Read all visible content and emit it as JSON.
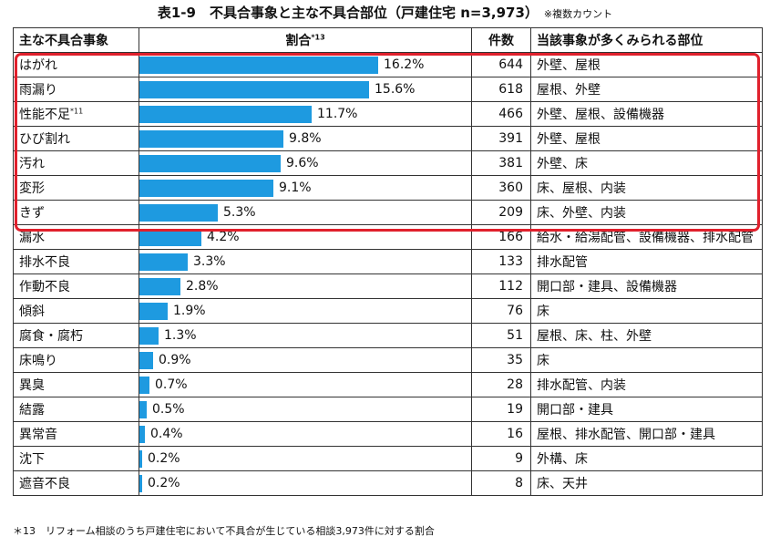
{
  "title": "表1-9　不具合事象と主な不具合部位（戸建住宅 n=3,973）",
  "title_note": "※複数カウント",
  "headers": {
    "event": "主な不具合事象",
    "ratio": "割合",
    "ratio_sup": "*13",
    "count": "件数",
    "parts": "当該事象が多くみられる部位"
  },
  "colors": {
    "bar": "#1e9ae0",
    "highlight": "#e0202c"
  },
  "highlight_rows": 7,
  "chart_data": {
    "type": "bar",
    "orientation": "horizontal",
    "ylim": [
      0,
      16.2
    ],
    "rows": [
      {
        "event": "はがれ",
        "sup": "",
        "ratio": 16.2,
        "ratio_label": "16.2%",
        "count": "644",
        "parts": "外壁、屋根"
      },
      {
        "event": "雨漏り",
        "sup": "",
        "ratio": 15.6,
        "ratio_label": "15.6%",
        "count": "618",
        "parts": "屋根、外壁"
      },
      {
        "event": "性能不足",
        "sup": "*11",
        "ratio": 11.7,
        "ratio_label": "11.7%",
        "count": "466",
        "parts": "外壁、屋根、設備機器"
      },
      {
        "event": "ひび割れ",
        "sup": "",
        "ratio": 9.8,
        "ratio_label": "9.8%",
        "count": "391",
        "parts": "外壁、屋根"
      },
      {
        "event": "汚れ",
        "sup": "",
        "ratio": 9.6,
        "ratio_label": "9.6%",
        "count": "381",
        "parts": "外壁、床"
      },
      {
        "event": "変形",
        "sup": "",
        "ratio": 9.1,
        "ratio_label": "9.1%",
        "count": "360",
        "parts": "床、屋根、内装"
      },
      {
        "event": "きず",
        "sup": "",
        "ratio": 5.3,
        "ratio_label": "5.3%",
        "count": "209",
        "parts": "床、外壁、内装"
      },
      {
        "event": "漏水",
        "sup": "",
        "ratio": 4.2,
        "ratio_label": "4.2%",
        "count": "166",
        "parts": "給水・給湯配管、設備機器、排水配管"
      },
      {
        "event": "排水不良",
        "sup": "",
        "ratio": 3.3,
        "ratio_label": "3.3%",
        "count": "133",
        "parts": "排水配管"
      },
      {
        "event": "作動不良",
        "sup": "",
        "ratio": 2.8,
        "ratio_label": "2.8%",
        "count": "112",
        "parts": "開口部・建具、設備機器"
      },
      {
        "event": "傾斜",
        "sup": "",
        "ratio": 1.9,
        "ratio_label": "1.9%",
        "count": "76",
        "parts": "床"
      },
      {
        "event": "腐食・腐朽",
        "sup": "",
        "ratio": 1.3,
        "ratio_label": "1.3%",
        "count": "51",
        "parts": "屋根、床、柱、外壁"
      },
      {
        "event": "床鳴り",
        "sup": "",
        "ratio": 0.9,
        "ratio_label": "0.9%",
        "count": "35",
        "parts": "床"
      },
      {
        "event": "異臭",
        "sup": "",
        "ratio": 0.7,
        "ratio_label": "0.7%",
        "count": "28",
        "parts": "排水配管、内装"
      },
      {
        "event": "結露",
        "sup": "",
        "ratio": 0.5,
        "ratio_label": "0.5%",
        "count": "19",
        "parts": "開口部・建具"
      },
      {
        "event": "異常音",
        "sup": "",
        "ratio": 0.4,
        "ratio_label": "0.4%",
        "count": "16",
        "parts": "屋根、排水配管、開口部・建具"
      },
      {
        "event": "沈下",
        "sup": "",
        "ratio": 0.2,
        "ratio_label": "0.2%",
        "count": "9",
        "parts": "外構、床"
      },
      {
        "event": "遮音不良",
        "sup": "",
        "ratio": 0.2,
        "ratio_label": "0.2%",
        "count": "8",
        "parts": "床、天井"
      }
    ]
  },
  "footnote": "＊13　リフォーム相談のうち戸建住宅において不具合が生じている相談3,973件に対する割合"
}
